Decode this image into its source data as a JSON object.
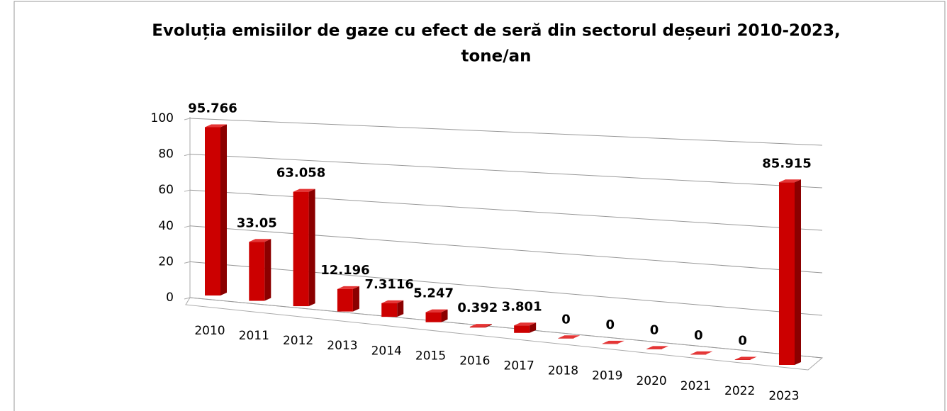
{
  "chart_data": {
    "type": "bar3d",
    "title": [
      "Evoluția emisiilor de gaze cu efect de seră din sectorul deșeuri  2010-2023,",
      "tone/an"
    ],
    "categories": [
      "2010",
      "2011",
      "2012",
      "2013",
      "2014",
      "2015",
      "2016",
      "2017",
      "2018",
      "2019",
      "2020",
      "2021",
      "2022",
      "2023"
    ],
    "values": [
      95.766,
      33.05,
      63.058,
      12.196,
      7.3116,
      5.247,
      0.392,
      3.801,
      0,
      0,
      0,
      0,
      0,
      85.915
    ],
    "color": "#cc0000",
    "ylim": [
      0,
      100
    ],
    "yticks": [
      0,
      20,
      40,
      60,
      80,
      100
    ],
    "grid": true
  }
}
